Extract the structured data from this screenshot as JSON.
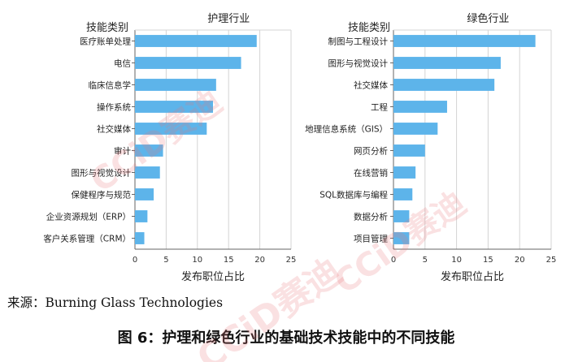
{
  "source_text": "来源：Burning Glass Technologies",
  "figure_caption": "图 6：护理和绿色行业的基础技术技能中的不同技能",
  "watermark_text": "CCiD赛迪",
  "colors": {
    "bar": "#5db4ea",
    "axis": "#666666",
    "grid": "#d4d4d4",
    "watermark": "#e8787a"
  },
  "chart_data": [
    {
      "type": "bar",
      "orientation": "horizontal",
      "title": "护理行业",
      "ylabel": "技能类别",
      "xlabel": "发布职位占比",
      "xlim": [
        0,
        25
      ],
      "xticks": [
        0,
        5,
        10,
        15,
        20,
        25
      ],
      "grid": true,
      "categories": [
        "医疗账单处理",
        "电信",
        "临床信息学",
        "操作系统",
        "社交媒体",
        "审计",
        "图形与视觉设计",
        "保健程序与规范",
        "企业资源规划（ERP）",
        "客户关系管理（CRM）"
      ],
      "values": [
        19.5,
        17.0,
        13.0,
        12.5,
        11.5,
        4.5,
        4.0,
        3.0,
        2.0,
        1.5
      ]
    },
    {
      "type": "bar",
      "orientation": "horizontal",
      "title": "绿色行业",
      "ylabel": "技能类别",
      "xlabel": "发布职位占比",
      "xlim": [
        0,
        25
      ],
      "xticks": [
        0,
        5,
        10,
        15,
        20,
        25
      ],
      "grid": true,
      "categories": [
        "制图与工程设计",
        "图形与视觉设计",
        "社交媒体",
        "工程",
        "地理信息系统（GIS）",
        "网页分析",
        "在线营销",
        "SQL数据库与编程",
        "数据分析",
        "项目管理"
      ],
      "values": [
        22.5,
        17.0,
        16.0,
        8.5,
        7.0,
        5.0,
        3.5,
        3.0,
        2.5,
        2.5
      ]
    }
  ]
}
